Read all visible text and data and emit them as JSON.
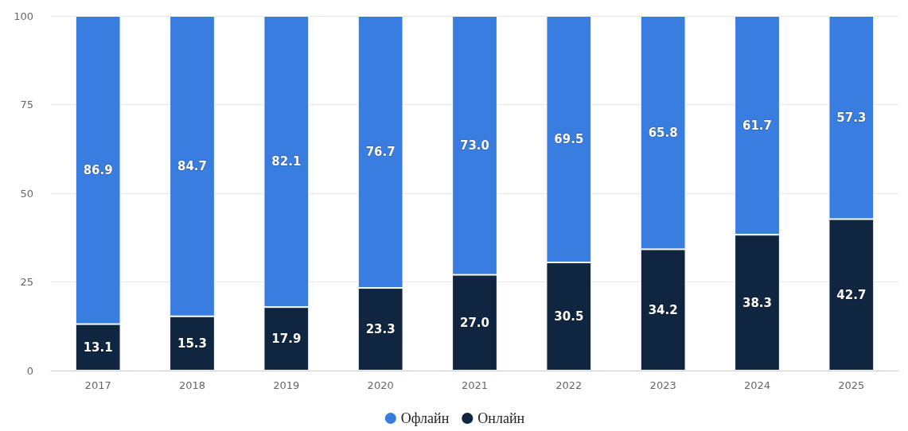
{
  "chart_data": {
    "type": "bar",
    "stacked": true,
    "categories": [
      "2017",
      "2018",
      "2019",
      "2020",
      "2021",
      "2022",
      "2023",
      "2024",
      "2025"
    ],
    "series": [
      {
        "name": "Онлайн",
        "color": "#0f2540",
        "values": [
          13.1,
          15.3,
          17.9,
          23.3,
          27.0,
          30.5,
          34.2,
          38.3,
          42.7
        ],
        "value_labels": [
          "13.1",
          "15.3",
          "17.9",
          "23.3",
          "27.0",
          "30.5",
          "34.2",
          "38.3",
          "42.7"
        ]
      },
      {
        "name": "Офлайн",
        "color": "#3a7de0",
        "values": [
          86.9,
          84.7,
          82.1,
          76.7,
          73.0,
          69.5,
          65.8,
          61.7,
          57.3
        ],
        "value_labels": [
          "86.9",
          "84.7",
          "82.1",
          "76.7",
          "73.0",
          "69.5",
          "65.8",
          "61.7",
          "57.3"
        ]
      }
    ],
    "ylim": [
      0,
      100
    ],
    "yticks": [
      0,
      25,
      50,
      75,
      100
    ],
    "grid": "y",
    "legend": "bottom"
  }
}
